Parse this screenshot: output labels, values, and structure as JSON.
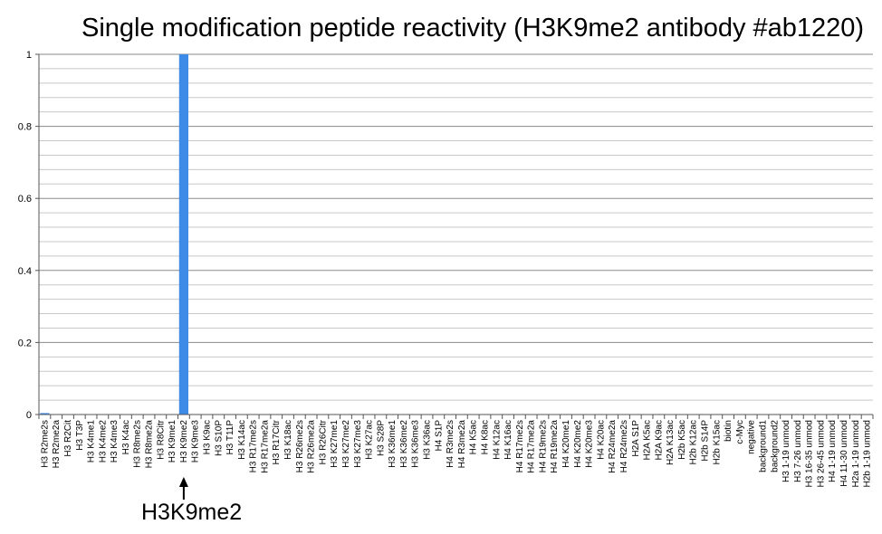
{
  "chart_data": {
    "type": "bar",
    "title": "Single modification peptide reactivity (H3K9me2 antibody #ab1220)",
    "xlabel": "",
    "ylabel": "",
    "ylim": [
      0,
      1
    ],
    "yticks": [
      "0",
      "0.2",
      "0.4",
      "0.6",
      "0.8",
      "1"
    ],
    "grid": true,
    "bar_color": "#3d8be6",
    "categories": [
      "H3 R2me2s",
      "H3 R2me2a",
      "H3 R2Cit",
      "H3 T3P",
      "H3 K4me1",
      "H3 K4me2",
      "H3 K4me3",
      "H3 K4ac",
      "H3 R8me2s",
      "H3 R8me2a",
      "H3 R8Citr",
      "H3 K9me1",
      "H3 K9me2",
      "H3 K9me3",
      "H3 K9ac",
      "H3 S10P",
      "H3 T11P",
      "H3 K14ac",
      "H3 R17me2s",
      "H3 R17me2a",
      "H3 R17Citr",
      "H3 K18ac",
      "H3 R26me2s",
      "H3 R26me2a",
      "H3 R26Citr",
      "H3 K27me1",
      "H3 K27me2",
      "H3 K27me3",
      "H3 K27ac",
      "H3 S28P",
      "H3 K36me1",
      "H3 K36me2",
      "H3 K36me3",
      "H3 K36ac",
      "H4 S1P",
      "H4 R3me2s",
      "H4 R3me2a",
      "H4 K5ac",
      "H4 K8ac",
      "H4 K12ac",
      "H4 K16ac",
      "H4 R17me2s",
      "H4 R17me2a",
      "H4 R19me2s",
      "H4 R19me2a",
      "H4 K20me1",
      "H4 K20me2",
      "H4 K20me3",
      "H4 K20ac",
      "H4 R24me2a",
      "H4 R24me2s",
      "H2A S1P",
      "H2A K5ac",
      "H2A K9ac",
      "H2A K13ac",
      "H2b K5ac",
      "H2b K12ac",
      "H2b S14P",
      "H2b K15ac",
      "biotin",
      "c-Myc",
      "negative",
      "background1",
      "background2",
      "H3 1-19 unmod",
      "H3 7-26 unmod",
      "H3 16-35 unmod",
      "H3 26-45 unmod",
      "H4 1-19 unmod",
      "H4 11-30 unmod",
      "H2a 1-19 unmod",
      "H2b 1-19 unmod"
    ],
    "values": [
      0.004,
      0,
      0,
      0,
      0,
      0,
      0,
      0,
      0,
      0,
      0,
      0,
      1,
      0,
      0,
      0,
      0,
      0,
      0,
      0,
      0,
      0,
      0,
      0,
      0,
      0,
      0,
      0,
      0,
      0,
      0,
      0,
      0,
      0,
      0,
      0,
      0,
      0,
      0,
      0,
      0,
      0,
      0,
      0,
      0,
      0,
      0,
      0,
      0,
      0,
      0,
      0,
      0,
      0,
      0,
      0,
      0,
      0,
      0,
      0,
      0,
      0,
      0,
      0,
      0,
      0,
      0,
      0,
      0,
      0,
      0,
      0
    ],
    "annotation": {
      "text": "H3K9me2",
      "category": "H3 K9me2"
    }
  }
}
